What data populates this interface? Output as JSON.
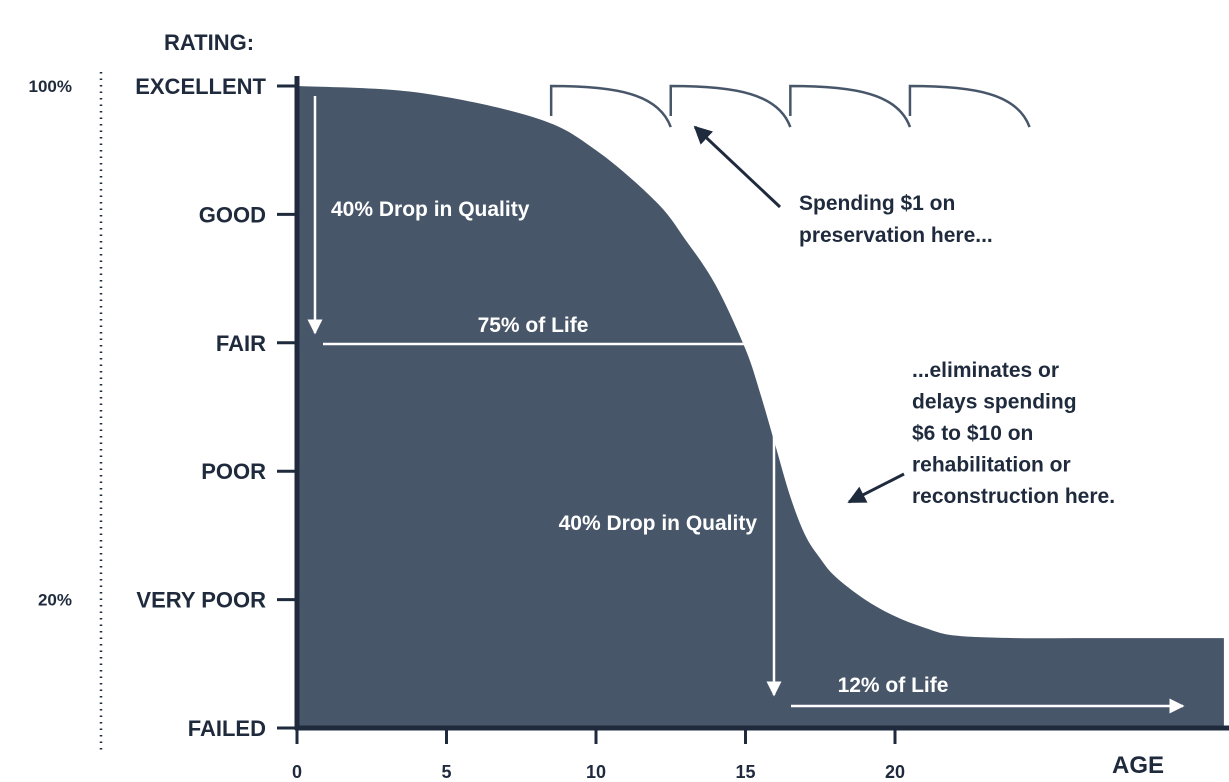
{
  "colors": {
    "area_fill": "#48566a",
    "axis": "#1f2b3d",
    "text_dark": "#1f2b3d",
    "text_light": "#ffffff",
    "dotted_line": "#1f2b3d"
  },
  "chart_data": {
    "type": "area",
    "title": "",
    "ylabel": "RATING:",
    "xlabel": "AGE",
    "x_ticks": [
      0,
      5,
      10,
      15,
      20
    ],
    "xlim": [
      0,
      31
    ],
    "y_categories": [
      "FAILED",
      "VERY POOR",
      "POOR",
      "FAIR",
      "GOOD",
      "EXCELLENT"
    ],
    "y_percent_labels": [
      {
        "label": "100%",
        "rating": "EXCELLENT"
      },
      {
        "label": "20%",
        "rating": "VERY POOR"
      }
    ],
    "grid": false,
    "series": [
      {
        "x": [
          0,
          4,
          8,
          10,
          12,
          13,
          14,
          15,
          15.5,
          16,
          16.5,
          17,
          17.5,
          18,
          19,
          20,
          21,
          22,
          24,
          26,
          28,
          31
        ],
        "y": [
          5.0,
          4.95,
          4.75,
          4.5,
          4.1,
          3.8,
          3.45,
          2.95,
          2.6,
          2.2,
          1.8,
          1.5,
          1.32,
          1.18,
          1.0,
          0.87,
          0.78,
          0.72,
          0.7,
          0.7,
          0.7,
          0.7
        ]
      }
    ],
    "preservation_cycles": [
      {
        "start": 8.5,
        "end": 12.5
      },
      {
        "start": 12.5,
        "end": 16.5
      },
      {
        "start": 16.5,
        "end": 20.5
      },
      {
        "start": 20.5,
        "end": 24.5
      }
    ],
    "annotations": [
      {
        "text": "40% Drop in Quality"
      },
      {
        "text": "75% of Life"
      },
      {
        "text": "40% Drop in Quality"
      },
      {
        "text": "12% of Life"
      },
      {
        "lines": [
          "Spending $1 on",
          "preservation here..."
        ]
      },
      {
        "lines": [
          "...eliminates or",
          "delays spending",
          "$6 to $10 on",
          "rehabilitation or",
          "reconstruction here."
        ]
      }
    ]
  }
}
